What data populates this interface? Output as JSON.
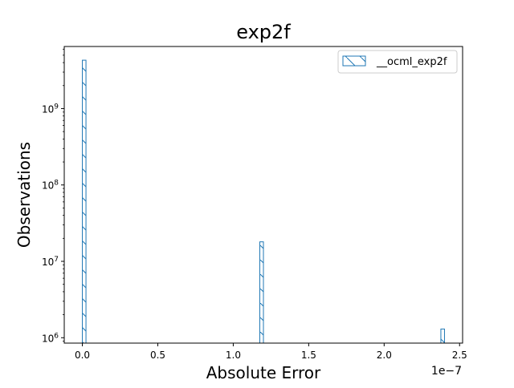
{
  "chart_data": {
    "type": "bar",
    "title": "exp2f",
    "xlabel": "Absolute Error",
    "ylabel": "Observations",
    "x_offset_label": "1e−7",
    "x_scale_factor": 1e-07,
    "xlim": [
      -0.12,
      2.52
    ],
    "ylim": [
      850000,
      6500000000
    ],
    "yscale": "log",
    "x_ticks": [
      0.0,
      0.5,
      1.0,
      1.5,
      2.0,
      2.5
    ],
    "x_tick_labels": [
      "0.0",
      "0.5",
      "1.0",
      "1.5",
      "2.0",
      "2.5"
    ],
    "y_ticks": [
      1000000,
      10000000,
      100000000,
      1000000000
    ],
    "y_tick_labels": [
      "10^6",
      "10^7",
      "10^8",
      "10^9"
    ],
    "grid": false,
    "legend_position": "top-right",
    "series": [
      {
        "name": "__ocml_exp2f",
        "color": "#1f77b4",
        "hatch": "\\",
        "bars": [
          {
            "x0": 0.0,
            "x1": 0.024,
            "value": 4300000000
          },
          {
            "x0": 1.176,
            "x1": 1.2,
            "value": 18000000
          },
          {
            "x0": 2.376,
            "x1": 2.4,
            "value": 1300000
          }
        ]
      }
    ]
  }
}
